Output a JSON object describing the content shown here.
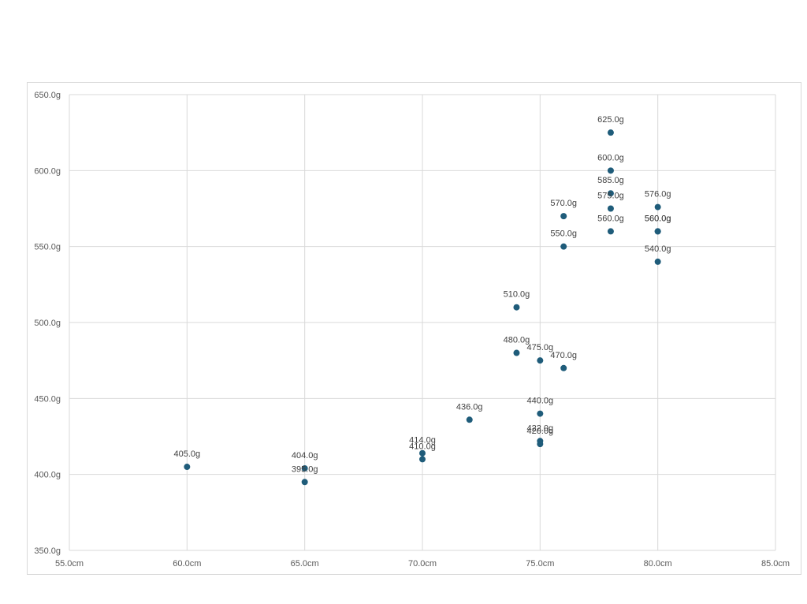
{
  "chart_data": {
    "type": "scatter",
    "title": "",
    "xlabel": "",
    "ylabel": "",
    "xlim": [
      55,
      85
    ],
    "ylim": [
      350,
      650
    ],
    "x_ticks": [
      55,
      60,
      65,
      70,
      75,
      80,
      85
    ],
    "y_ticks": [
      350,
      400,
      450,
      500,
      550,
      600,
      650
    ],
    "x_tick_labels": [
      "55.0cm",
      "60.0cm",
      "65.0cm",
      "70.0cm",
      "75.0cm",
      "80.0cm",
      "85.0cm"
    ],
    "y_tick_labels": [
      "350.0g",
      "400.0g",
      "450.0g",
      "500.0g",
      "550.0g",
      "600.0g",
      "650.0g"
    ],
    "grid": true,
    "legend": "none",
    "marker_color": "#1f5c7a",
    "points": [
      {
        "x": 60,
        "y": 405,
        "label": "405.0g"
      },
      {
        "x": 65,
        "y": 404,
        "label": "404.0g"
      },
      {
        "x": 65,
        "y": 395,
        "label": "395.0g"
      },
      {
        "x": 70,
        "y": 414,
        "label": "414.0g"
      },
      {
        "x": 70,
        "y": 410,
        "label": "410.0g"
      },
      {
        "x": 72,
        "y": 436,
        "label": "436.0g"
      },
      {
        "x": 74,
        "y": 510,
        "label": "510.0g"
      },
      {
        "x": 74,
        "y": 480,
        "label": "480.0g"
      },
      {
        "x": 75,
        "y": 475,
        "label": "475.0g"
      },
      {
        "x": 75,
        "y": 440,
        "label": "440.0g"
      },
      {
        "x": 75,
        "y": 422,
        "label": "422.0g"
      },
      {
        "x": 75,
        "y": 420,
        "label": "420.0g"
      },
      {
        "x": 76,
        "y": 570,
        "label": "570.0g"
      },
      {
        "x": 76,
        "y": 550,
        "label": "550.0g"
      },
      {
        "x": 76,
        "y": 470,
        "label": "470.0g"
      },
      {
        "x": 78,
        "y": 625,
        "label": "625.0g"
      },
      {
        "x": 78,
        "y": 600,
        "label": "600.0g"
      },
      {
        "x": 78,
        "y": 585,
        "label": "585.0g"
      },
      {
        "x": 78,
        "y": 575,
        "label": "575.0g"
      },
      {
        "x": 78,
        "y": 560,
        "label": "560.0g"
      },
      {
        "x": 80,
        "y": 576,
        "label": "576.0g"
      },
      {
        "x": 80,
        "y": 560,
        "label": "560.0g"
      },
      {
        "x": 80,
        "y": 560,
        "label": "560.0g"
      },
      {
        "x": 80,
        "y": 540,
        "label": "540.0g"
      }
    ]
  }
}
